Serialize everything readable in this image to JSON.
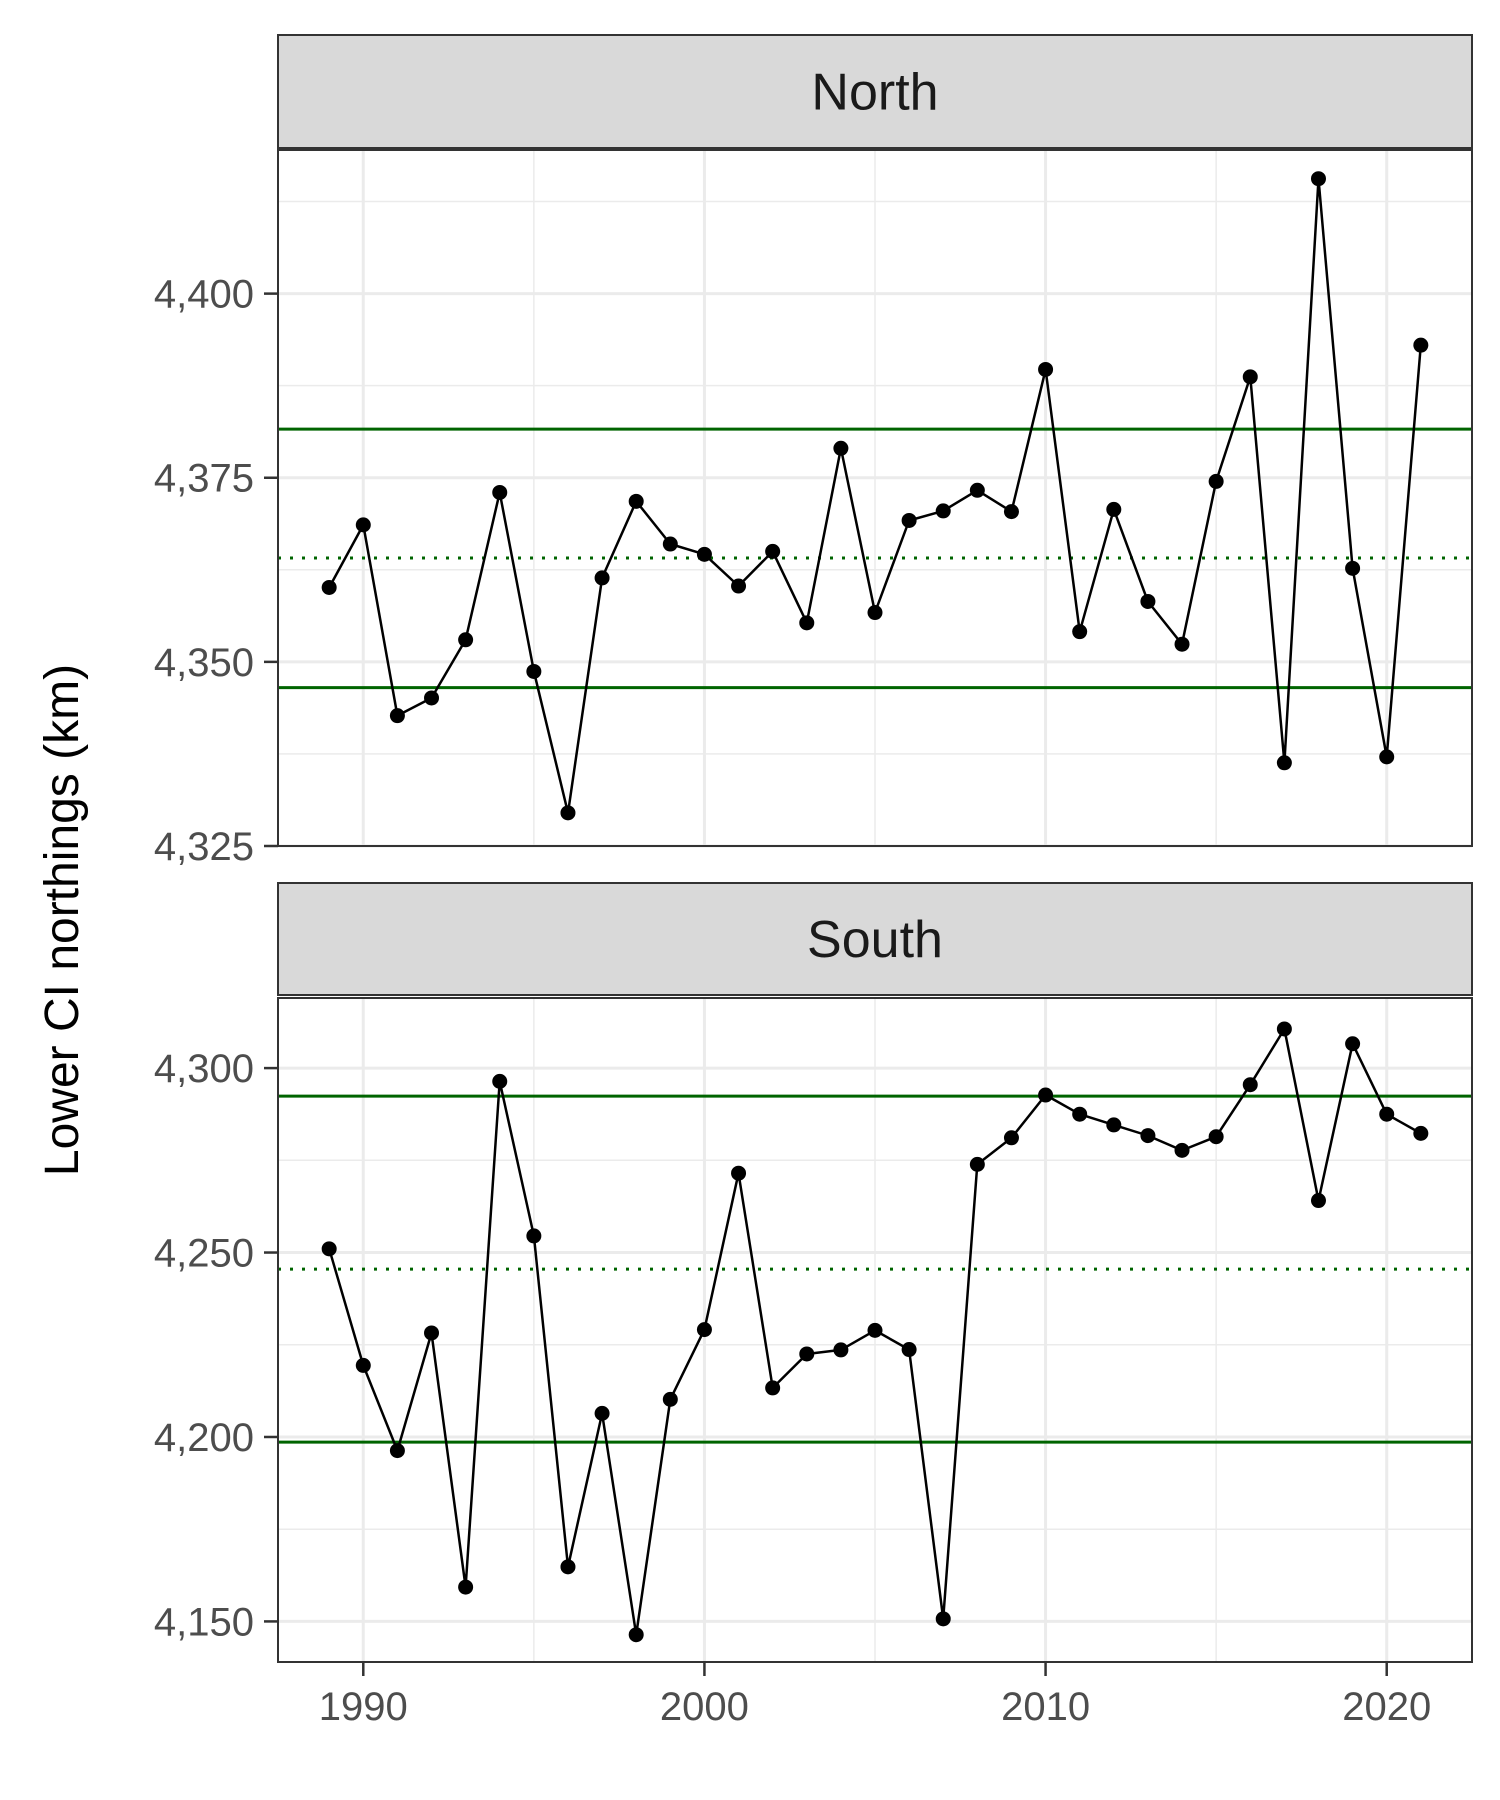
{
  "chart_data": {
    "type": "line",
    "ylabel": "Lower CI northings (km)",
    "xlabel": "",
    "xlim": [
      1987.5,
      2022.5
    ],
    "x_ticks": [
      1990,
      2000,
      2010,
      2020
    ],
    "x_tick_labels": [
      "1990",
      "2000",
      "2010",
      "2020"
    ],
    "grid": true,
    "colors": {
      "series": "#000000",
      "reference": "#006400",
      "strip": "#d9d9d9",
      "grid": "#ebebeb"
    },
    "panels": [
      {
        "title": "North",
        "ylim": [
          4325,
          4419.5
        ],
        "y_ticks": [
          4325,
          4350,
          4375,
          4400
        ],
        "y_tick_labels": [
          "4,325",
          "4,350",
          "4,375",
          "4,400"
        ],
        "series": [
          {
            "x": [
              1989,
              1990,
              1991,
              1992,
              1993,
              1994,
              1995,
              1996,
              1997,
              1998,
              1999,
              2000,
              2001,
              2002,
              2003,
              2004,
              2005,
              2006,
              2007,
              2008,
              2009,
              2010,
              2011,
              2012,
              2013,
              2014,
              2015,
              2016,
              2017,
              2018,
              2019,
              2020,
              2021
            ],
            "y": [
              4360.1,
              4368.6,
              4342.7,
              4345.1,
              4353.0,
              4373.0,
              4348.7,
              4329.5,
              4361.4,
              4371.8,
              4366.0,
              4364.6,
              4360.3,
              4365.0,
              4355.3,
              4379.0,
              4356.7,
              4369.2,
              4370.5,
              4373.3,
              4370.4,
              4389.7,
              4354.1,
              4370.7,
              4358.2,
              4352.4,
              4374.5,
              4388.7,
              4336.3,
              4415.6,
              4362.7,
              4337.1,
              4393.0
            ]
          }
        ],
        "reference_lines": [
          {
            "style": "solid",
            "y": 4381.6
          },
          {
            "style": "dotted",
            "y": 4364.1
          },
          {
            "style": "solid",
            "y": 4346.5
          }
        ]
      },
      {
        "title": "South",
        "ylim": [
          4139,
          4319
        ],
        "y_ticks": [
          4150,
          4200,
          4250,
          4300
        ],
        "y_tick_labels": [
          "4,150",
          "4,200",
          "4,250",
          "4,300"
        ],
        "series": [
          {
            "x": [
              1989,
              1990,
              1991,
              1992,
              1993,
              1994,
              1995,
              1996,
              1997,
              1998,
              1999,
              2000,
              2001,
              2002,
              2003,
              2004,
              2005,
              2006,
              2007,
              2008,
              2009,
              2010,
              2011,
              2012,
              2013,
              2014,
              2015,
              2016,
              2017,
              2018,
              2019,
              2020,
              2021
            ],
            "y": [
              4251.0,
              4219.4,
              4196.3,
              4228.2,
              4159.3,
              4296.4,
              4254.5,
              4164.8,
              4206.4,
              4146.4,
              4210.2,
              4229.1,
              4271.5,
              4213.3,
              4222.5,
              4223.6,
              4228.9,
              4223.7,
              4150.7,
              4273.9,
              4281.1,
              4292.7,
              4287.5,
              4284.6,
              4281.7,
              4277.7,
              4281.4,
              4295.5,
              4310.6,
              4264.1,
              4306.6,
              4287.5,
              4282.3
            ]
          }
        ],
        "reference_lines": [
          {
            "style": "solid",
            "y": 4292.4
          },
          {
            "style": "dotted",
            "y": 4245.5
          },
          {
            "style": "solid",
            "y": 4198.6
          }
        ]
      }
    ]
  }
}
